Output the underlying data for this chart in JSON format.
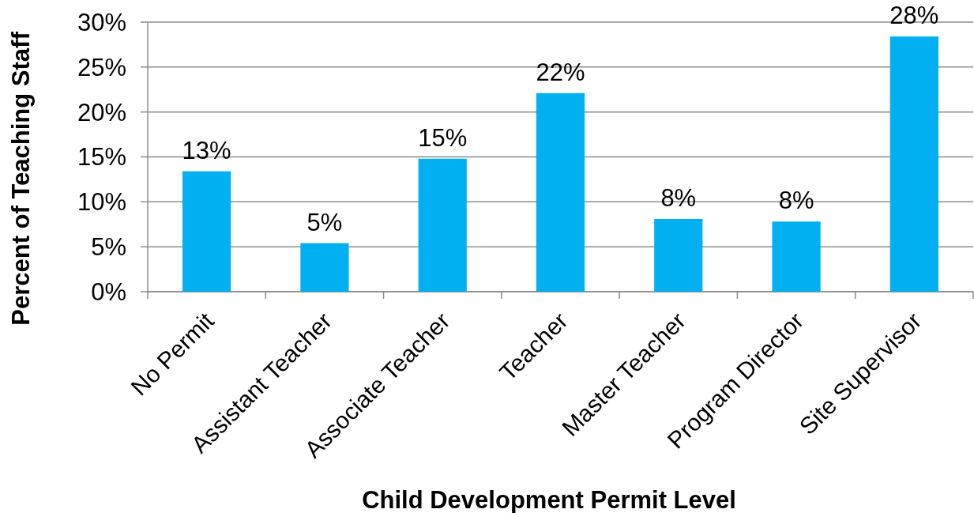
{
  "chart_data": {
    "type": "bar",
    "xlabel": "Child Development Permit Level",
    "ylabel": "Percent of Teaching Staff",
    "categories": [
      "No Permit",
      "Assistant Teacher",
      "Associate Teacher",
      "Teacher",
      "Master Teacher",
      "Program Director",
      "Site Supervisor"
    ],
    "values": [
      13.4,
      5.4,
      14.8,
      22.1,
      8.1,
      7.8,
      28.4
    ],
    "value_labels": [
      "13%",
      "5%",
      "15%",
      "22%",
      "8%",
      "8%",
      "28%"
    ],
    "color": "#00b0f0",
    "ylim": [
      0,
      30
    ],
    "yticks": [
      {
        "value": 0,
        "label": "0%"
      },
      {
        "value": 5,
        "label": "5%"
      },
      {
        "value": 10,
        "label": "10%"
      },
      {
        "value": 15,
        "label": "15%"
      },
      {
        "value": 20,
        "label": "20%"
      },
      {
        "value": 25,
        "label": "25%"
      },
      {
        "value": 30,
        "label": "30%"
      }
    ],
    "grid": "y"
  }
}
